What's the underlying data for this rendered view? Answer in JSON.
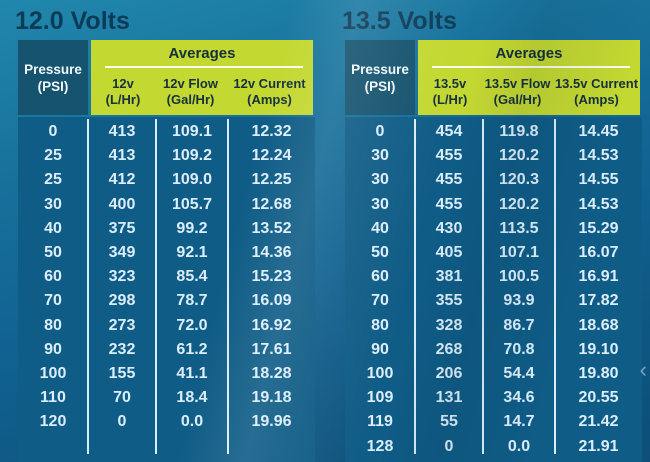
{
  "colors": {
    "background_top": "#2187ad",
    "background_bottom": "#0d4f77",
    "panel_blue": "#0f5c86",
    "header_blue": "#15536f",
    "accent_green": "#c3d831",
    "title_navy": "#0c3b57",
    "green_text": "#16303d",
    "body_text": "#dceefb",
    "underline": "#fbfbee"
  },
  "chevron_left": "‹",
  "tables": [
    {
      "title": "12.0 Volts",
      "pressure": [
        "Pressure",
        "(PSI)"
      ],
      "averages_label": "Averages",
      "columns": [
        [
          "12v",
          "(L/Hr)"
        ],
        [
          "12v Flow",
          "(Gal/Hr)"
        ],
        [
          "12v Current",
          "(Amps)"
        ]
      ],
      "rows": [
        [
          "0",
          "413",
          "109.1",
          "12.32"
        ],
        [
          "25",
          "413",
          "109.2",
          "12.24"
        ],
        [
          "25",
          "412",
          "109.0",
          "12.25"
        ],
        [
          "30",
          "400",
          "105.7",
          "12.68"
        ],
        [
          "40",
          "375",
          "99.2",
          "13.52"
        ],
        [
          "50",
          "349",
          "92.1",
          "14.36"
        ],
        [
          "60",
          "323",
          "85.4",
          "15.23"
        ],
        [
          "70",
          "298",
          "78.7",
          "16.09"
        ],
        [
          "80",
          "273",
          "72.0",
          "16.92"
        ],
        [
          "90",
          "232",
          "61.2",
          "17.61"
        ],
        [
          "100",
          "155",
          "41.1",
          "18.28"
        ],
        [
          "110",
          "70",
          "18.4",
          "19.18"
        ],
        [
          "120",
          "0",
          "0.0",
          "19.96"
        ]
      ]
    },
    {
      "title": "13.5 Volts",
      "pressure": [
        "Pressure",
        "(PSI)"
      ],
      "averages_label": "Averages",
      "columns": [
        [
          "13.5v",
          "(L/Hr)"
        ],
        [
          "13.5v Flow",
          "(Gal/Hr)"
        ],
        [
          "13.5v Current",
          "(Amps)"
        ]
      ],
      "rows": [
        [
          "0",
          "454",
          "119.8",
          "14.45"
        ],
        [
          "30",
          "455",
          "120.2",
          "14.53"
        ],
        [
          "30",
          "455",
          "120.3",
          "14.55"
        ],
        [
          "30",
          "455",
          "120.2",
          "14.53"
        ],
        [
          "40",
          "430",
          "113.5",
          "15.29"
        ],
        [
          "50",
          "405",
          "107.1",
          "16.07"
        ],
        [
          "60",
          "381",
          "100.5",
          "16.91"
        ],
        [
          "70",
          "355",
          "93.9",
          "17.82"
        ],
        [
          "80",
          "328",
          "86.7",
          "18.68"
        ],
        [
          "90",
          "268",
          "70.8",
          "19.10"
        ],
        [
          "100",
          "206",
          "54.4",
          "19.80"
        ],
        [
          "109",
          "131",
          "34.6",
          "20.55"
        ],
        [
          "119",
          "55",
          "14.7",
          "21.42"
        ],
        [
          "128",
          "0",
          "0.0",
          "21.91"
        ]
      ]
    }
  ],
  "chart_data": [
    {
      "type": "table",
      "title": "12.0 Volts",
      "columns": [
        "Pressure (PSI)",
        "12v (L/Hr)",
        "12v Flow (Gal/Hr)",
        "12v Current (Amps)"
      ],
      "rows": [
        [
          0,
          413,
          109.1,
          12.32
        ],
        [
          25,
          413,
          109.2,
          12.24
        ],
        [
          25,
          412,
          109.0,
          12.25
        ],
        [
          30,
          400,
          105.7,
          12.68
        ],
        [
          40,
          375,
          99.2,
          13.52
        ],
        [
          50,
          349,
          92.1,
          14.36
        ],
        [
          60,
          323,
          85.4,
          15.23
        ],
        [
          70,
          298,
          78.7,
          16.09
        ],
        [
          80,
          273,
          72.0,
          16.92
        ],
        [
          90,
          232,
          61.2,
          17.61
        ],
        [
          100,
          155,
          41.1,
          18.28
        ],
        [
          110,
          70,
          18.4,
          19.18
        ],
        [
          120,
          0,
          0.0,
          19.96
        ]
      ]
    },
    {
      "type": "table",
      "title": "13.5 Volts",
      "columns": [
        "Pressure (PSI)",
        "13.5v (L/Hr)",
        "13.5v Flow (Gal/Hr)",
        "13.5v Current (Amps)"
      ],
      "rows": [
        [
          0,
          454,
          119.8,
          14.45
        ],
        [
          30,
          455,
          120.2,
          14.53
        ],
        [
          30,
          455,
          120.3,
          14.55
        ],
        [
          30,
          455,
          120.2,
          14.53
        ],
        [
          40,
          430,
          113.5,
          15.29
        ],
        [
          50,
          405,
          107.1,
          16.07
        ],
        [
          60,
          381,
          100.5,
          16.91
        ],
        [
          70,
          355,
          93.9,
          17.82
        ],
        [
          80,
          328,
          86.7,
          18.68
        ],
        [
          90,
          268,
          70.8,
          19.1
        ],
        [
          100,
          206,
          54.4,
          19.8
        ],
        [
          109,
          131,
          34.6,
          20.55
        ],
        [
          119,
          55,
          14.7,
          21.42
        ],
        [
          128,
          0,
          0.0,
          21.91
        ]
      ]
    }
  ]
}
